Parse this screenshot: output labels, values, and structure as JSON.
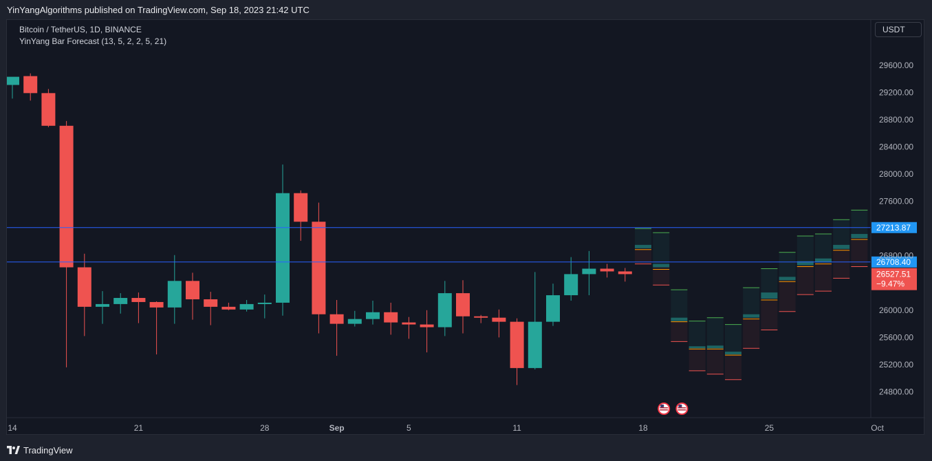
{
  "header": {
    "publish_line": "YinYangAlgorithms published on TradingView.com, Sep 18, 2023 21:42 UTC"
  },
  "legend": {
    "symbol_line": "Bitcoin / TetherUS, 1D, BINANCE",
    "indicator_line": "YinYang Bar Forecast (13, 5, 2, 2, 5, 21)"
  },
  "currency_button": "USDT",
  "footer": {
    "brand": "TradingView",
    "logo_icon": "tradingview-logo-icon"
  },
  "colors": {
    "up": "#26a69a",
    "down": "#ef5350",
    "background": "#131722",
    "grid": "#2a2e39",
    "hline": "#2962ff",
    "badge_blue": "#2196f3",
    "badge_red": "#ef5350"
  },
  "chart_data": {
    "type": "candlestick",
    "symbol": "Bitcoin / TetherUS",
    "interval": "1D",
    "exchange": "BINANCE",
    "ylim": [
      24500,
      30000
    ],
    "y_ticks": [
      "29600.00",
      "29200.00",
      "28800.00",
      "28400.00",
      "28000.00",
      "27600.00",
      "26800.00",
      "26000.00",
      "25600.00",
      "25200.00",
      "24800.00"
    ],
    "x_ticks": [
      {
        "label": "14",
        "date": "2023-08-14"
      },
      {
        "label": "21",
        "date": "2023-08-21"
      },
      {
        "label": "28",
        "date": "2023-08-28"
      },
      {
        "label": "Sep",
        "date": "2023-09-01",
        "bold": true
      },
      {
        "label": "5",
        "date": "2023-09-05"
      },
      {
        "label": "11",
        "date": "2023-09-11"
      },
      {
        "label": "18",
        "date": "2023-09-18"
      },
      {
        "label": "25",
        "date": "2023-09-25"
      },
      {
        "label": "Oct",
        "date": "2023-10-01"
      }
    ],
    "candles": [
      {
        "date": "2023-08-14",
        "o": 29310,
        "h": 29400,
        "l": 29110,
        "c": 29430
      },
      {
        "date": "2023-08-15",
        "o": 29440,
        "h": 29480,
        "l": 29080,
        "c": 29190
      },
      {
        "date": "2023-08-16",
        "o": 29190,
        "h": 29250,
        "l": 28690,
        "c": 28710
      },
      {
        "date": "2023-08-17",
        "o": 28710,
        "h": 28780,
        "l": 25160,
        "c": 26630
      },
      {
        "date": "2023-08-18",
        "o": 26630,
        "h": 26830,
        "l": 25620,
        "c": 26050
      },
      {
        "date": "2023-08-19",
        "o": 26050,
        "h": 26280,
        "l": 25800,
        "c": 26090
      },
      {
        "date": "2023-08-20",
        "o": 26090,
        "h": 26250,
        "l": 25950,
        "c": 26180
      },
      {
        "date": "2023-08-21",
        "o": 26180,
        "h": 26260,
        "l": 25810,
        "c": 26120
      },
      {
        "date": "2023-08-22",
        "o": 26120,
        "h": 26130,
        "l": 25350,
        "c": 26040
      },
      {
        "date": "2023-08-23",
        "o": 26040,
        "h": 26810,
        "l": 25800,
        "c": 26430
      },
      {
        "date": "2023-08-24",
        "o": 26430,
        "h": 26550,
        "l": 25860,
        "c": 26160
      },
      {
        "date": "2023-08-25",
        "o": 26160,
        "h": 26270,
        "l": 25780,
        "c": 26050
      },
      {
        "date": "2023-08-26",
        "o": 26050,
        "h": 26110,
        "l": 26000,
        "c": 26010
      },
      {
        "date": "2023-08-27",
        "o": 26010,
        "h": 26150,
        "l": 25980,
        "c": 26090
      },
      {
        "date": "2023-08-28",
        "o": 26090,
        "h": 26230,
        "l": 25880,
        "c": 26110
      },
      {
        "date": "2023-08-29",
        "o": 26110,
        "h": 28140,
        "l": 25920,
        "c": 27720
      },
      {
        "date": "2023-08-30",
        "o": 27720,
        "h": 27760,
        "l": 27020,
        "c": 27300
      },
      {
        "date": "2023-08-31",
        "o": 27300,
        "h": 27580,
        "l": 25660,
        "c": 25940
      },
      {
        "date": "2023-09-01",
        "o": 25940,
        "h": 26150,
        "l": 25330,
        "c": 25800
      },
      {
        "date": "2023-09-02",
        "o": 25800,
        "h": 25990,
        "l": 25760,
        "c": 25870
      },
      {
        "date": "2023-09-03",
        "o": 25870,
        "h": 26140,
        "l": 25790,
        "c": 25970
      },
      {
        "date": "2023-09-04",
        "o": 25970,
        "h": 26110,
        "l": 25640,
        "c": 25820
      },
      {
        "date": "2023-09-05",
        "o": 25820,
        "h": 25900,
        "l": 25580,
        "c": 25790
      },
      {
        "date": "2023-09-06",
        "o": 25790,
        "h": 26000,
        "l": 25380,
        "c": 25750
      },
      {
        "date": "2023-09-07",
        "o": 25750,
        "h": 26430,
        "l": 25620,
        "c": 26250
      },
      {
        "date": "2023-09-08",
        "o": 26250,
        "h": 26440,
        "l": 25660,
        "c": 25910
      },
      {
        "date": "2023-09-09",
        "o": 25910,
        "h": 25930,
        "l": 25810,
        "c": 25890
      },
      {
        "date": "2023-09-10",
        "o": 25890,
        "h": 26010,
        "l": 25600,
        "c": 25830
      },
      {
        "date": "2023-09-11",
        "o": 25830,
        "h": 25880,
        "l": 24900,
        "c": 25150
      },
      {
        "date": "2023-09-12",
        "o": 25150,
        "h": 26560,
        "l": 25130,
        "c": 25830
      },
      {
        "date": "2023-09-13",
        "o": 25830,
        "h": 26390,
        "l": 25770,
        "c": 26220
      },
      {
        "date": "2023-09-14",
        "o": 26220,
        "h": 26780,
        "l": 26140,
        "c": 26530
      },
      {
        "date": "2023-09-15",
        "o": 26530,
        "h": 26870,
        "l": 26220,
        "c": 26610
      },
      {
        "date": "2023-09-16",
        "o": 26610,
        "h": 26680,
        "l": 26480,
        "c": 26570
      },
      {
        "date": "2023-09-17",
        "o": 26570,
        "h": 26620,
        "l": 26420,
        "c": 26530
      }
    ],
    "forecast_bars": [
      {
        "date": "2023-09-18",
        "top": 27200,
        "bottom": 26680,
        "band_top": 26960,
        "band_bottom": 26910,
        "mid": 26890
      },
      {
        "date": "2023-09-19",
        "top": 27140,
        "bottom": 26370,
        "band_top": 26680,
        "band_bottom": 26630,
        "mid": 26600
      },
      {
        "date": "2023-09-20",
        "top": 26300,
        "bottom": 25540,
        "band_top": 25890,
        "band_bottom": 25840,
        "mid": 25830
      },
      {
        "date": "2023-09-21",
        "top": 25840,
        "bottom": 25110,
        "band_top": 25470,
        "band_bottom": 25440,
        "mid": 25430
      },
      {
        "date": "2023-09-22",
        "top": 25890,
        "bottom": 25060,
        "band_top": 25480,
        "band_bottom": 25440,
        "mid": 25430
      },
      {
        "date": "2023-09-23",
        "top": 25790,
        "bottom": 24980,
        "band_top": 25390,
        "band_bottom": 25350,
        "mid": 25340
      },
      {
        "date": "2023-09-24",
        "top": 26330,
        "bottom": 25440,
        "band_top": 25940,
        "band_bottom": 25890,
        "mid": 25870
      },
      {
        "date": "2023-09-25",
        "top": 26610,
        "bottom": 25710,
        "band_top": 26260,
        "band_bottom": 26170,
        "mid": 26150
      },
      {
        "date": "2023-09-26",
        "top": 26850,
        "bottom": 25980,
        "band_top": 26490,
        "band_bottom": 26440,
        "mid": 26420
      },
      {
        "date": "2023-09-27",
        "top": 27090,
        "bottom": 26230,
        "band_top": 26720,
        "band_bottom": 26660,
        "mid": 26640
      },
      {
        "date": "2023-09-28",
        "top": 27120,
        "bottom": 26280,
        "band_top": 26760,
        "band_bottom": 26700,
        "mid": 26680
      },
      {
        "date": "2023-09-29",
        "top": 27330,
        "bottom": 26470,
        "band_top": 26960,
        "band_bottom": 26900,
        "mid": 26880
      },
      {
        "date": "2023-09-30",
        "top": 27470,
        "bottom": 26640,
        "band_top": 27120,
        "band_bottom": 27060,
        "mid": 27040
      }
    ],
    "horizontal_lines": [
      {
        "price": 27213.87,
        "label": "27213.87",
        "color": "#2196f3"
      },
      {
        "price": 26708.4,
        "label": "26708.40",
        "color": "#2196f3"
      }
    ],
    "last_price_badge": {
      "price": 26527.51,
      "label": "26527.51",
      "change": "−9.47%",
      "color": "#ef5350"
    },
    "event_markers": [
      {
        "date": "2023-09-19",
        "icon": "us-flag-icon"
      },
      {
        "date": "2023-09-20",
        "icon": "us-flag-icon"
      }
    ]
  }
}
